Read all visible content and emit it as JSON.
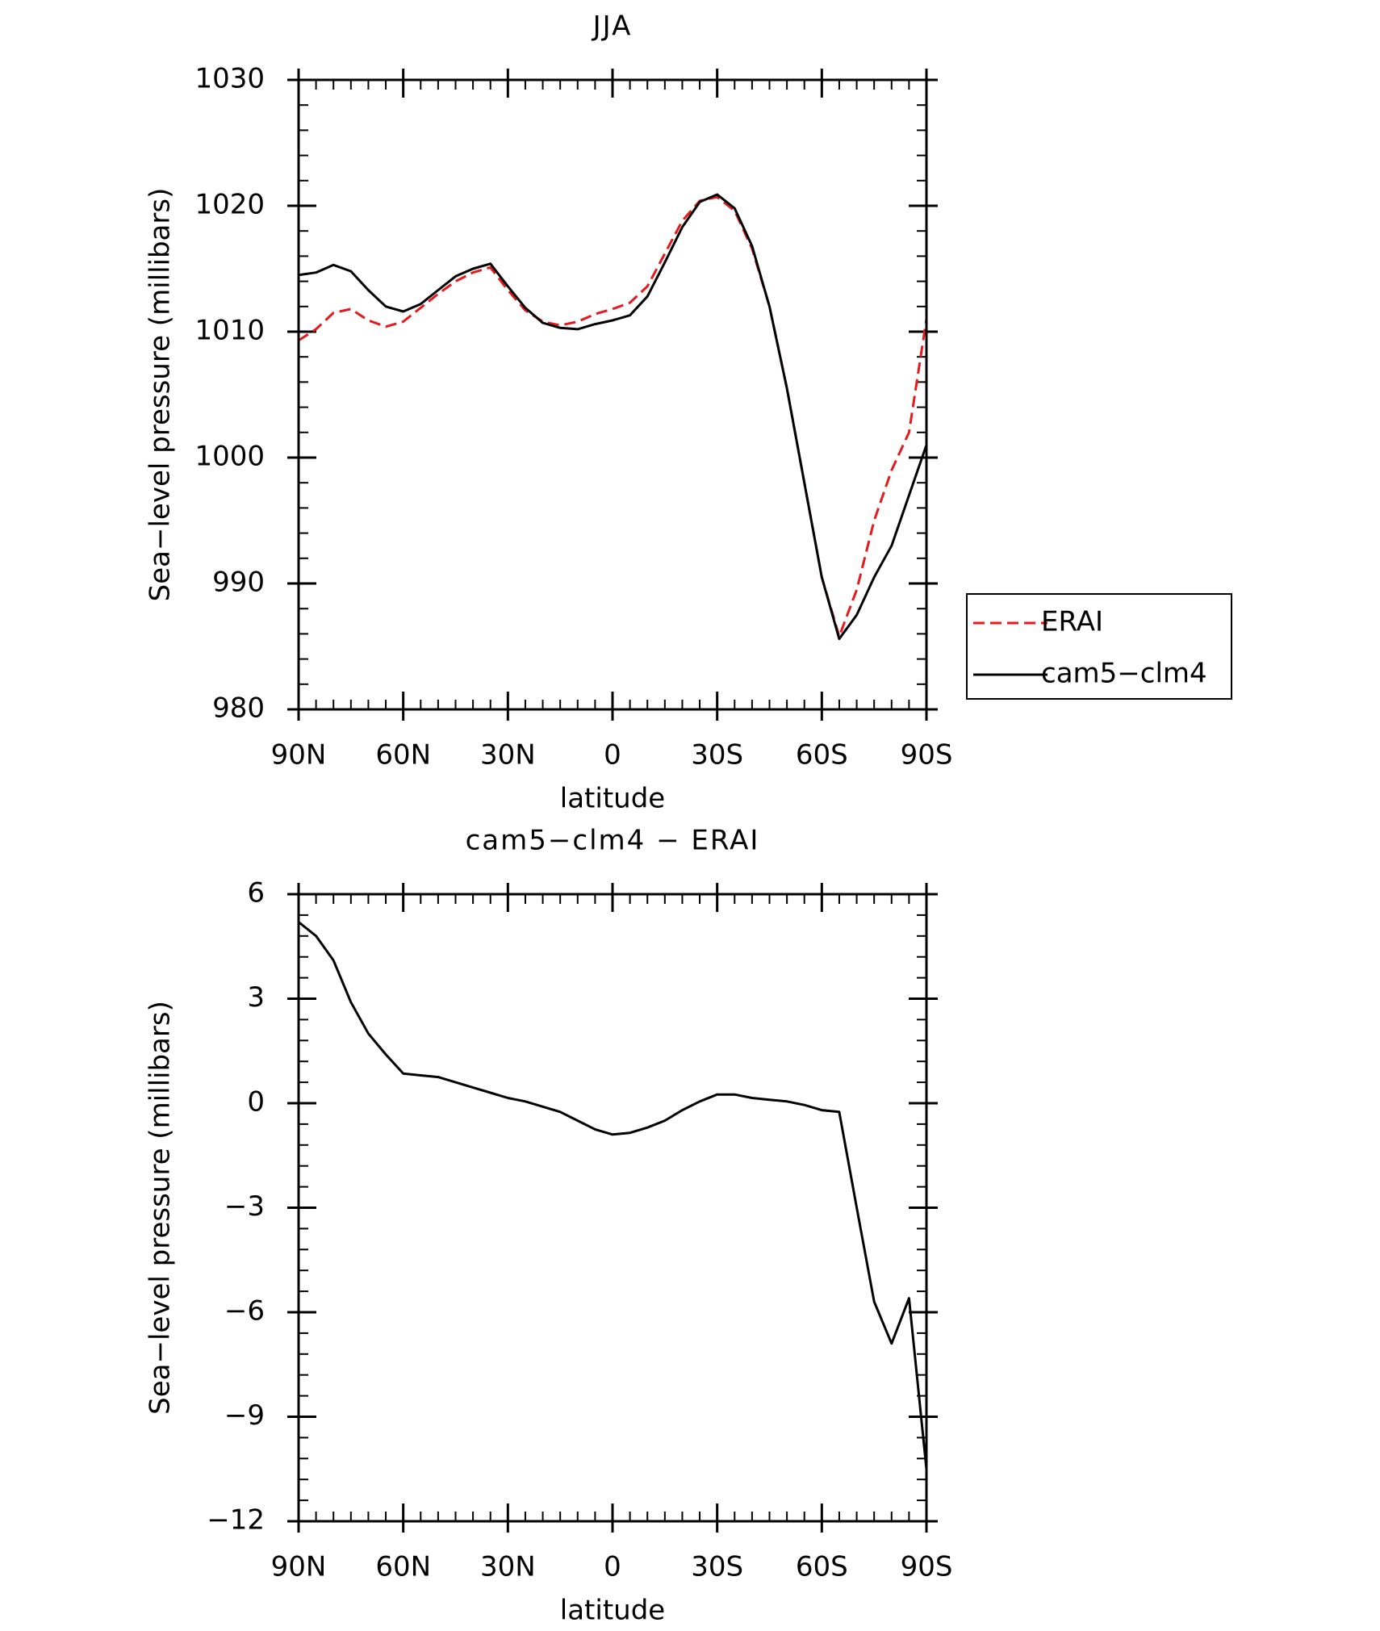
{
  "chart_data": [
    {
      "type": "line",
      "title": "JJA",
      "x_label": "latitude",
      "y_label": "Sea−level pressure (millibars)",
      "x": [
        90,
        85,
        80,
        75,
        70,
        65,
        60,
        55,
        50,
        45,
        40,
        35,
        30,
        25,
        20,
        15,
        10,
        5,
        0,
        -5,
        -10,
        -15,
        -20,
        -25,
        -30,
        -35,
        -40,
        -45,
        -50,
        -55,
        -60,
        -65,
        -70,
        -75,
        -80,
        -85,
        -90
      ],
      "xlim": [
        90,
        -90
      ],
      "xticks": [
        {
          "value": 90,
          "label": "90N"
        },
        {
          "value": 60,
          "label": "60N"
        },
        {
          "value": 30,
          "label": "30N"
        },
        0,
        {
          "value": -30,
          "label": "30S"
        },
        {
          "value": -60,
          "label": "60S"
        },
        {
          "value": -90,
          "label": "90S"
        }
      ],
      "ylim": [
        980,
        1030
      ],
      "yticks": [
        980,
        990,
        1000,
        1010,
        1020,
        1030
      ],
      "legend": "right",
      "series": [
        {
          "name": "ERAI",
          "color": "#e41a1c",
          "style": "dashed",
          "values": [
            1009.3,
            1010.2,
            1011.5,
            1011.8,
            1010.9,
            1010.4,
            1010.8,
            1011.9,
            1013.0,
            1014.0,
            1014.7,
            1015.1,
            1013.3,
            1011.7,
            1010.8,
            1010.5,
            1010.8,
            1011.4,
            1011.8,
            1012.3,
            1013.6,
            1016.2,
            1018.8,
            1020.4,
            1020.7,
            1019.6,
            1016.6,
            1012.0,
            1005.5,
            998.0,
            990.5,
            985.8,
            989.5,
            995.0,
            999.0,
            1002.0,
            1011.0
          ]
        },
        {
          "name": "cam5−clm4",
          "color": "#000000",
          "style": "solid",
          "values": [
            1014.5,
            1014.7,
            1015.3,
            1014.8,
            1013.3,
            1012.0,
            1011.6,
            1012.2,
            1013.3,
            1014.4,
            1015.0,
            1015.4,
            1013.6,
            1011.9,
            1010.7,
            1010.3,
            1010.2,
            1010.6,
            1010.9,
            1011.3,
            1012.8,
            1015.5,
            1018.3,
            1020.3,
            1020.9,
            1019.8,
            1016.8,
            1012.0,
            1005.5,
            998.0,
            990.5,
            985.6,
            987.5,
            990.5,
            993.0,
            997.0,
            1001.0
          ]
        }
      ]
    },
    {
      "type": "line",
      "title": "cam5−clm4 − ERAI",
      "x_label": "latitude",
      "y_label": "Sea−level pressure (millibars)",
      "x": [
        90,
        85,
        80,
        75,
        70,
        65,
        60,
        55,
        50,
        45,
        40,
        35,
        30,
        25,
        20,
        15,
        10,
        5,
        0,
        -5,
        -10,
        -15,
        -20,
        -25,
        -30,
        -35,
        -40,
        -45,
        -50,
        -55,
        -60,
        -65,
        -70,
        -75,
        -80,
        -85,
        -90
      ],
      "xlim": [
        90,
        -90
      ],
      "xticks": [
        {
          "value": 90,
          "label": "90N"
        },
        {
          "value": 60,
          "label": "60N"
        },
        {
          "value": 30,
          "label": "30N"
        },
        0,
        {
          "value": -30,
          "label": "30S"
        },
        {
          "value": -60,
          "label": "60S"
        },
        {
          "value": -90,
          "label": "90S"
        }
      ],
      "ylim": [
        -12,
        6
      ],
      "yticks": [
        {
          "value": -12,
          "label": "−12"
        },
        {
          "value": -9,
          "label": "−9"
        },
        {
          "value": -6,
          "label": "−6"
        },
        {
          "value": -3,
          "label": "−3"
        },
        0,
        3,
        6
      ],
      "series": [
        {
          "color": "#000000",
          "style": "solid",
          "values": [
            5.2,
            4.8,
            4.1,
            2.9,
            2.0,
            1.4,
            0.85,
            0.8,
            0.75,
            0.6,
            0.45,
            0.3,
            0.15,
            0.05,
            -0.1,
            -0.25,
            -0.5,
            -0.75,
            -0.9,
            -0.85,
            -0.7,
            -0.5,
            -0.2,
            0.05,
            0.25,
            0.25,
            0.15,
            0.1,
            0.05,
            -0.05,
            -0.2,
            -0.25,
            -3.0,
            -5.7,
            -6.9,
            -5.6,
            -10.5
          ]
        }
      ]
    }
  ]
}
